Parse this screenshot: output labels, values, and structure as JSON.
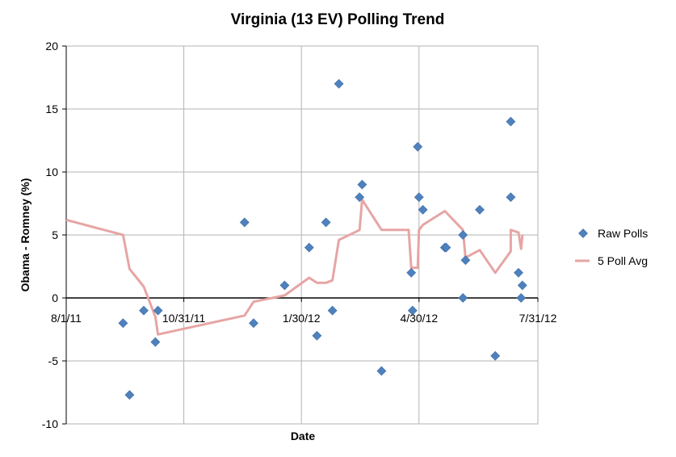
{
  "chart_data": {
    "type": "scatter",
    "title": "Virginia (13 EV) Polling Trend",
    "xlabel": "Date",
    "ylabel": "Obama - Romney (%)",
    "xlim": [
      "2011-08-01",
      "2012-07-31"
    ],
    "ylim": [
      -10,
      20
    ],
    "x_ticks": [
      "2011-08-01",
      "2011-10-31",
      "2012-01-30",
      "2012-04-30",
      "2012-07-31"
    ],
    "x_tick_labels": [
      "8/1/11",
      "10/31/11",
      "1/30/12",
      "4/30/12",
      "7/31/12"
    ],
    "y_ticks": [
      -10,
      -5,
      0,
      5,
      10,
      15,
      20
    ],
    "y_tick_labels": [
      "-10",
      "-5",
      "0",
      "5",
      "10",
      "15",
      "20"
    ],
    "grid": true,
    "legend_position": "right",
    "colors": {
      "raw": "#4f81bd",
      "avg": "#e6a5a4",
      "grid": "#b3b3b3",
      "axis": "#000000",
      "frame": "#888888"
    },
    "series": [
      {
        "name": "Raw Polls",
        "marker": "diamond",
        "points": [
          [
            "2011-09-14",
            -2
          ],
          [
            "2011-09-19",
            -7.7
          ],
          [
            "2011-09-30",
            -1
          ],
          [
            "2011-10-09",
            -3.5
          ],
          [
            "2011-10-11",
            -1
          ],
          [
            "2011-12-17",
            6
          ],
          [
            "2011-12-24",
            -2
          ],
          [
            "2012-01-17",
            1
          ],
          [
            "2012-02-05",
            4
          ],
          [
            "2012-02-11",
            -3
          ],
          [
            "2012-02-18",
            6
          ],
          [
            "2012-02-23",
            -1
          ],
          [
            "2012-02-28",
            17
          ],
          [
            "2012-03-15",
            8
          ],
          [
            "2012-03-17",
            9
          ],
          [
            "2012-04-01",
            -5.8
          ],
          [
            "2012-04-24",
            2
          ],
          [
            "2012-04-25",
            -1
          ],
          [
            "2012-04-29",
            12
          ],
          [
            "2012-04-30",
            8
          ],
          [
            "2012-05-03",
            7
          ],
          [
            "2012-05-20",
            4
          ],
          [
            "2012-05-21",
            4
          ],
          [
            "2012-06-03",
            0
          ],
          [
            "2012-06-03",
            5
          ],
          [
            "2012-06-05",
            3
          ],
          [
            "2012-06-16",
            7
          ],
          [
            "2012-06-28",
            -4.6
          ],
          [
            "2012-07-10",
            14
          ],
          [
            "2012-07-10",
            8
          ],
          [
            "2012-07-16",
            2
          ],
          [
            "2012-07-18",
            0
          ],
          [
            "2012-07-19",
            1
          ]
        ]
      },
      {
        "name": "5 Poll Avg",
        "line": true,
        "points": [
          [
            "2011-08-01",
            6.2
          ],
          [
            "2011-09-14",
            5.0
          ],
          [
            "2011-09-19",
            2.3
          ],
          [
            "2011-09-30",
            0.9
          ],
          [
            "2011-10-09",
            -1.5
          ],
          [
            "2011-10-11",
            -2.9
          ],
          [
            "2011-12-17",
            -1.4
          ],
          [
            "2011-12-24",
            -0.3
          ],
          [
            "2012-01-17",
            0.2
          ],
          [
            "2012-02-05",
            1.6
          ],
          [
            "2012-02-11",
            1.2
          ],
          [
            "2012-02-18",
            1.2
          ],
          [
            "2012-02-23",
            1.4
          ],
          [
            "2012-02-28",
            4.6
          ],
          [
            "2012-03-15",
            5.4
          ],
          [
            "2012-03-17",
            7.8
          ],
          [
            "2012-04-01",
            5.4
          ],
          [
            "2012-04-22",
            5.4
          ],
          [
            "2012-04-24",
            2.4
          ],
          [
            "2012-04-29",
            2.4
          ],
          [
            "2012-04-30",
            5.4
          ],
          [
            "2012-05-03",
            5.8
          ],
          [
            "2012-05-20",
            6.9
          ],
          [
            "2012-06-03",
            5.4
          ],
          [
            "2012-06-05",
            3.2
          ],
          [
            "2012-06-16",
            3.8
          ],
          [
            "2012-06-28",
            2.0
          ],
          [
            "2012-07-10",
            3.7
          ],
          [
            "2012-07-10",
            5.4
          ],
          [
            "2012-07-16",
            5.2
          ],
          [
            "2012-07-18",
            3.9
          ],
          [
            "2012-07-19",
            5.0
          ]
        ]
      }
    ]
  }
}
